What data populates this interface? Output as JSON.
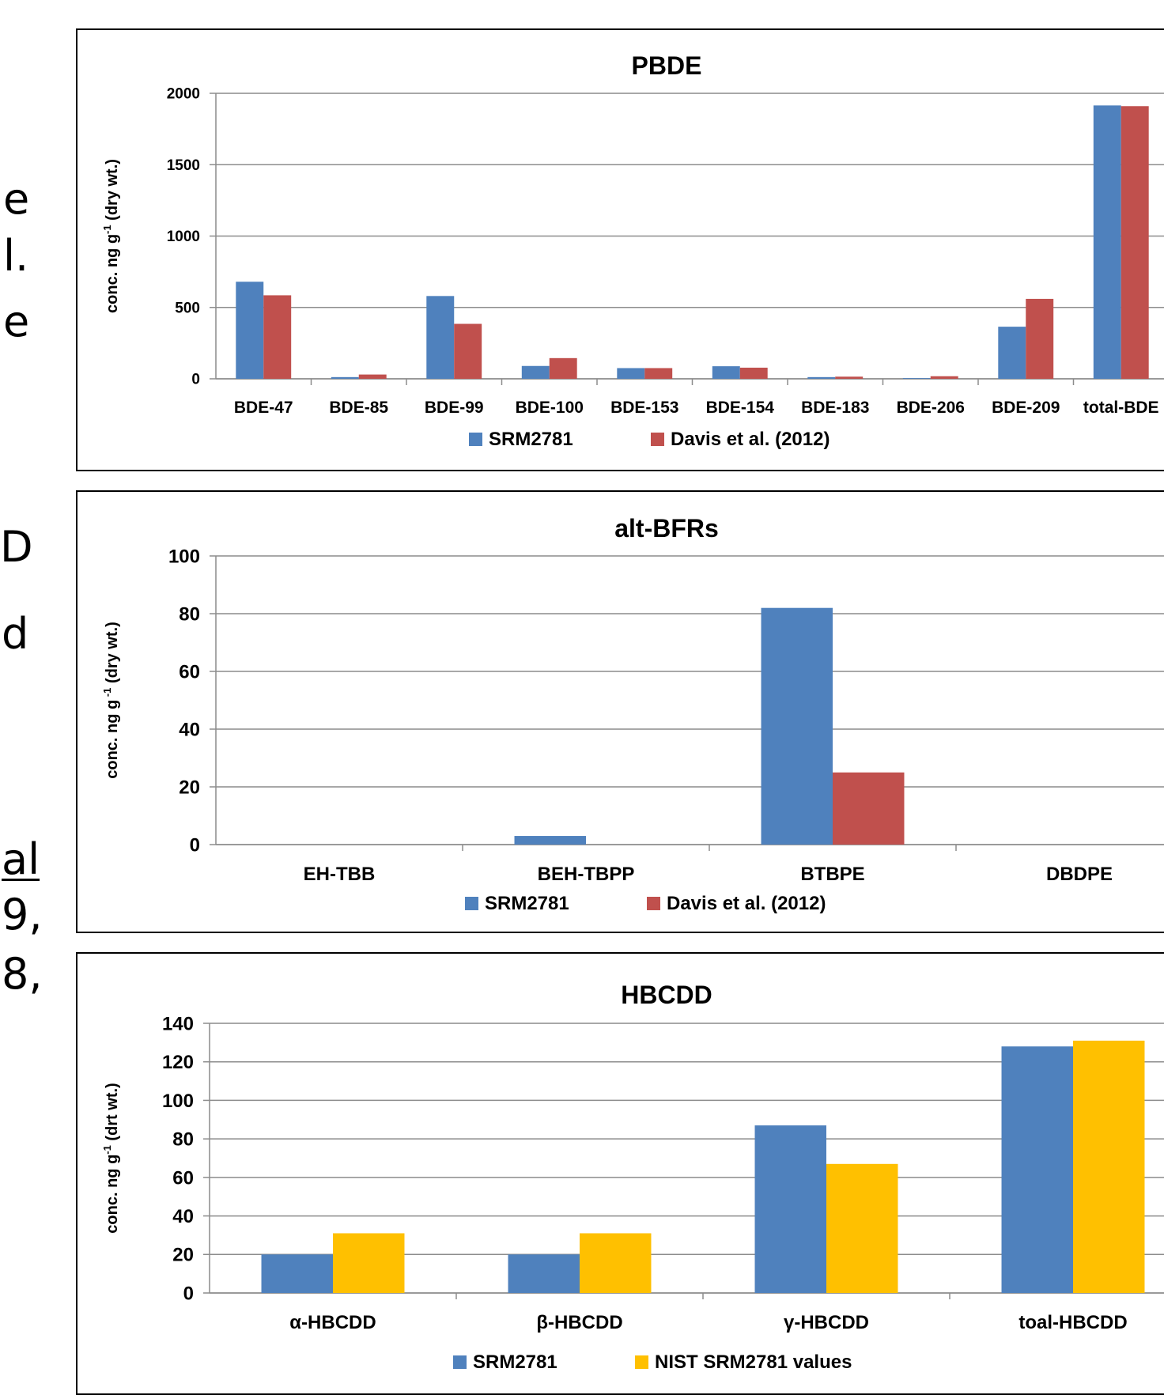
{
  "side_text": [
    "e",
    "l.",
    "e",
    "D",
    "d",
    "al",
    "9,",
    "8,"
  ],
  "colors": {
    "series_blue": "#4F81BD",
    "series_red": "#C0504D",
    "series_yellow": "#FFC000"
  },
  "chart_data": [
    {
      "type": "bar",
      "title": "PBDE",
      "ylabel_main": "conc. ng g",
      "ylabel_sup": "-1",
      "ylabel_tail": " (dry wt.)",
      "ylim": [
        0,
        2000
      ],
      "yticks": [
        0,
        500,
        1000,
        1500,
        2000
      ],
      "grid": true,
      "legend_position": "bottom",
      "categories": [
        "BDE-47",
        "BDE-85",
        "BDE-99",
        "BDE-100",
        "BDE-153",
        "BDE-154",
        "BDE-183",
        "BDE-206",
        "BDE-209",
        "total-BDE"
      ],
      "series": [
        {
          "name": "SRM2781",
          "values": [
            680,
            12,
            580,
            90,
            75,
            88,
            12,
            5,
            365,
            1915
          ]
        },
        {
          "name": "Davis et al. (2012)",
          "values": [
            585,
            30,
            385,
            145,
            75,
            78,
            15,
            18,
            560,
            1910
          ]
        }
      ]
    },
    {
      "type": "bar",
      "title": "alt-BFRs",
      "ylabel_main": "conc. ng g",
      "ylabel_sup": " -1",
      "ylabel_tail": " (dry wt.)",
      "ylim": [
        0,
        100
      ],
      "yticks": [
        0,
        20,
        40,
        60,
        80,
        100
      ],
      "grid": true,
      "legend_position": "bottom",
      "categories": [
        "EH-TBB",
        "BEH-TBPP",
        "BTBPE",
        "DBDPE"
      ],
      "series": [
        {
          "name": "SRM2781",
          "values": [
            0,
            3,
            82,
            0
          ]
        },
        {
          "name": "Davis et al. (2012)",
          "values": [
            0,
            0,
            25,
            0
          ]
        }
      ]
    },
    {
      "type": "bar",
      "title": "HBCDD",
      "ylabel_main": "conc. ng g",
      "ylabel_sup": "-1",
      "ylabel_tail": " (drt wt.)",
      "ylim": [
        0,
        140
      ],
      "yticks": [
        0,
        20,
        40,
        60,
        80,
        100,
        120,
        140
      ],
      "grid": true,
      "legend_position": "bottom",
      "categories": [
        "α-HBCDD",
        "β-HBCDD",
        "γ-HBCDD",
        "toal-HBCDD"
      ],
      "series": [
        {
          "name": "SRM2781",
          "values": [
            20,
            20,
            87,
            128
          ]
        },
        {
          "name": "NIST SRM2781 values",
          "values": [
            31,
            31,
            67,
            131
          ]
        }
      ]
    }
  ]
}
